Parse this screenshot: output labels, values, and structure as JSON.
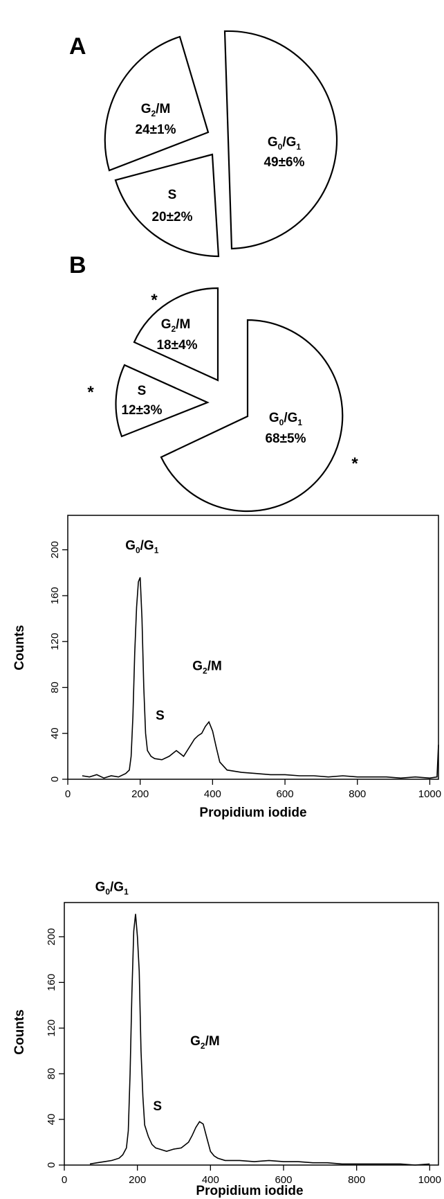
{
  "panels": {
    "A": "A",
    "B": "B",
    "significance_marker": "*"
  },
  "chart_data": [
    {
      "type": "pie",
      "panel": "A",
      "slices": [
        {
          "phase": "G2/M",
          "label_main": "G",
          "label_sub": "2",
          "label_rest": "/M",
          "value_text": "24±1%",
          "value": 24
        },
        {
          "phase": "S",
          "label_main": "S",
          "label_sub": "",
          "label_rest": "",
          "value_text": "20±2%",
          "value": 20
        },
        {
          "phase": "G0/G1",
          "label_main": "G",
          "label_sub": "0",
          "label_rest": "/G",
          "label_sub2": "1",
          "value_text": "49±6%",
          "value": 49
        }
      ],
      "exploded": true,
      "significance": []
    },
    {
      "type": "pie",
      "panel": "B",
      "slices": [
        {
          "phase": "G2/M",
          "label_main": "G",
          "label_sub": "2",
          "label_rest": "/M",
          "value_text": "18±4%",
          "value": 18
        },
        {
          "phase": "S",
          "label_main": "S",
          "label_sub": "",
          "label_rest": "",
          "value_text": "12±3%",
          "value": 12
        },
        {
          "phase": "G0/G1",
          "label_main": "G",
          "label_sub": "0",
          "label_rest": "/G",
          "label_sub2": "1",
          "value_text": "68±5%",
          "value": 68
        }
      ],
      "exploded": true,
      "significance": [
        "G2/M",
        "S",
        "G0/G1"
      ]
    },
    {
      "type": "line",
      "xlabel": "Propidium iodide",
      "ylabel": "Counts",
      "xlim": [
        0,
        1024
      ],
      "ylim": [
        0,
        230
      ],
      "xticks": [
        0,
        200,
        400,
        600,
        800,
        1000
      ],
      "yticks": [
        0,
        40,
        80,
        120,
        160,
        200
      ],
      "peak_labels": [
        {
          "phase": "G0/G1",
          "main": "G",
          "sub": "0",
          "rest": "/G",
          "sub2": "1",
          "x": 205,
          "y": 200
        },
        {
          "phase": "S",
          "main": "S",
          "sub": "",
          "rest": "",
          "sub2": "",
          "x": 255,
          "y": 52
        },
        {
          "phase": "G2/M",
          "main": "G",
          "sub": "2",
          "rest": "/M",
          "sub2": "",
          "x": 385,
          "y": 95
        }
      ],
      "series": [
        {
          "x": [
            40,
            60,
            80,
            100,
            120,
            140,
            160,
            170,
            175,
            180,
            185,
            190,
            195,
            200,
            205,
            210,
            215,
            220,
            230,
            240,
            260,
            280,
            300,
            320,
            340,
            350,
            360,
            370,
            380,
            390,
            400,
            410,
            420,
            440,
            480,
            520,
            560,
            600,
            640,
            680,
            720,
            760,
            800,
            840,
            880,
            920,
            960,
            1000,
            1020,
            1024
          ],
          "y": [
            3,
            2,
            4,
            1,
            3,
            2,
            5,
            8,
            20,
            55,
            110,
            150,
            172,
            176,
            140,
            80,
            40,
            25,
            20,
            18,
            17,
            20,
            25,
            20,
            30,
            35,
            38,
            40,
            46,
            50,
            42,
            28,
            15,
            8,
            6,
            5,
            4,
            4,
            3,
            3,
            2,
            3,
            2,
            2,
            2,
            1,
            2,
            1,
            2,
            30
          ]
        }
      ]
    },
    {
      "type": "line",
      "xlabel": "Propidium iodide",
      "ylabel": "Counts",
      "xlim": [
        0,
        1024
      ],
      "ylim": [
        0,
        230
      ],
      "xticks": [
        0,
        200,
        400,
        600,
        800,
        1000
      ],
      "yticks": [
        0,
        40,
        80,
        120,
        160,
        200
      ],
      "peak_labels": [
        {
          "phase": "G0/G1",
          "main": "G",
          "sub": "0",
          "rest": "/G",
          "sub2": "1",
          "x": 130,
          "y": 240
        },
        {
          "phase": "S",
          "main": "S",
          "sub": "",
          "rest": "",
          "sub2": "",
          "x": 255,
          "y": 48
        },
        {
          "phase": "G2/M",
          "main": "G",
          "sub": "2",
          "rest": "/M",
          "sub2": "",
          "x": 385,
          "y": 105
        }
      ],
      "series": [
        {
          "x": [
            70,
            90,
            110,
            130,
            150,
            160,
            170,
            175,
            180,
            185,
            190,
            195,
            200,
            205,
            210,
            215,
            220,
            230,
            240,
            250,
            260,
            280,
            300,
            320,
            340,
            350,
            360,
            370,
            380,
            390,
            400,
            410,
            420,
            440,
            480,
            520,
            560,
            600,
            640,
            680,
            720,
            760,
            800,
            840,
            880,
            920,
            960,
            1000
          ],
          "y": [
            1,
            2,
            3,
            4,
            6,
            9,
            15,
            30,
            80,
            150,
            205,
            220,
            200,
            170,
            100,
            60,
            35,
            25,
            18,
            15,
            14,
            12,
            14,
            15,
            20,
            26,
            33,
            38,
            36,
            24,
            12,
            8,
            6,
            4,
            4,
            3,
            4,
            3,
            3,
            2,
            2,
            1,
            1,
            1,
            1,
            1,
            0,
            1
          ]
        }
      ]
    }
  ]
}
